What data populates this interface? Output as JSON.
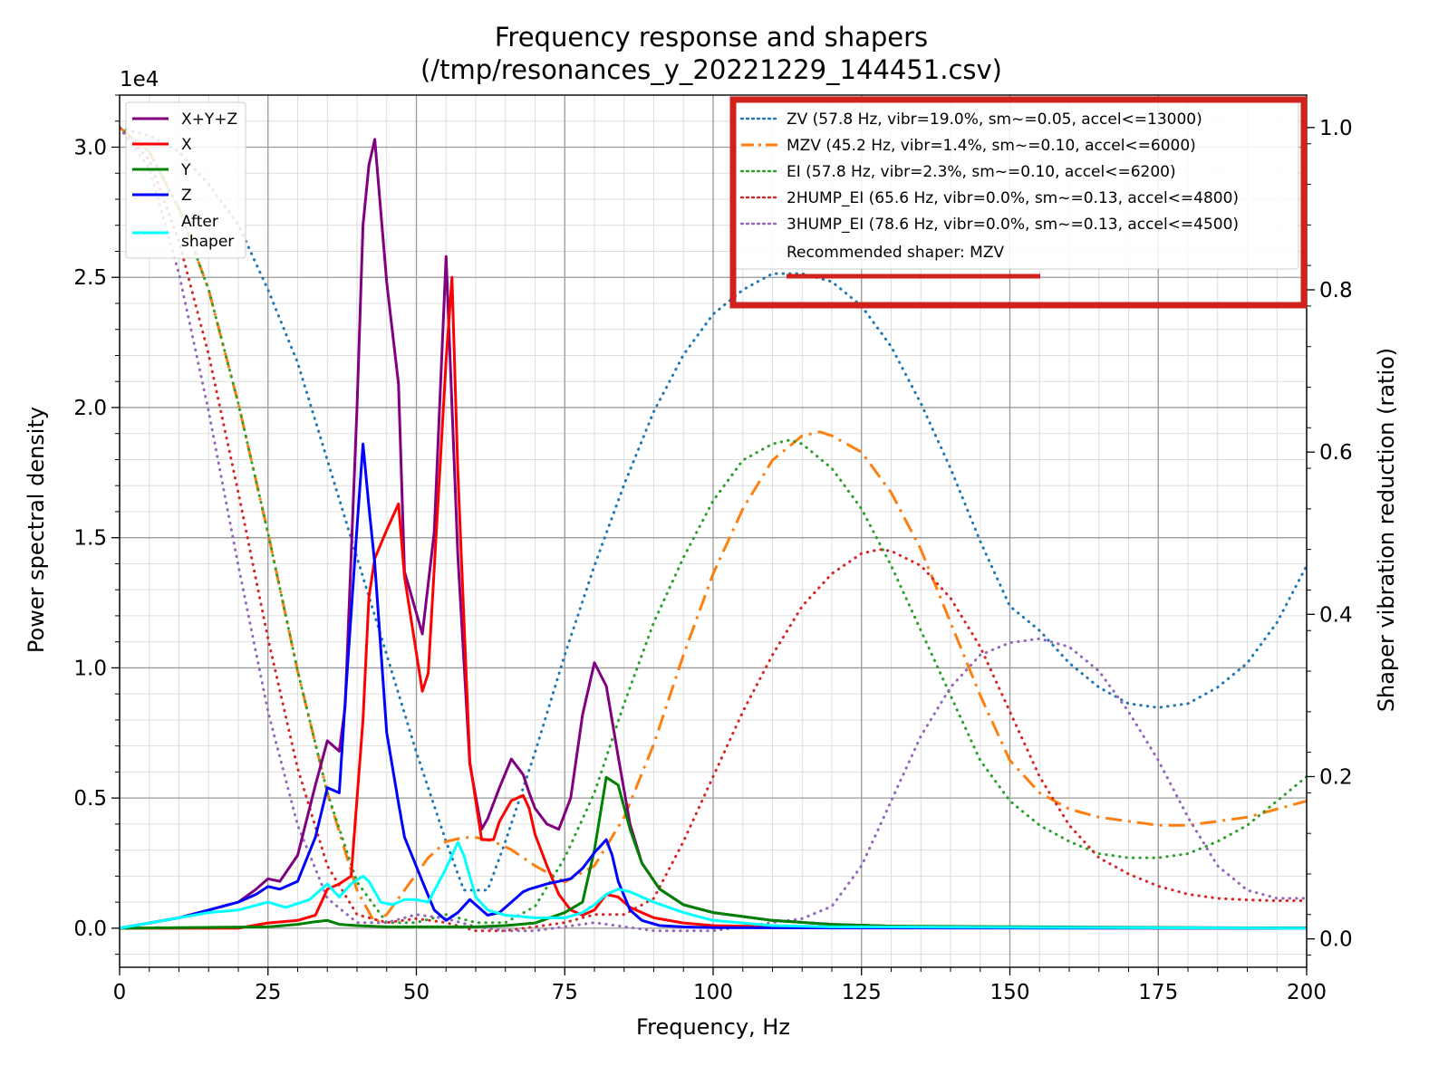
{
  "chart_data": {
    "type": "line",
    "title": "Frequency response and shapers",
    "subtitle": "(/tmp/resonances_y_20221229_144451.csv)",
    "xlabel": "Frequency, Hz",
    "ylabel": "Power spectral density",
    "y2label": "Shaper vibration reduction (ratio)",
    "xlim": [
      0,
      200
    ],
    "ylim": [
      -1500,
      32000
    ],
    "y2lim": [
      -0.035,
      1.04
    ],
    "y_offset_label": "1e4",
    "grid": true,
    "x_ticks": [
      0,
      25,
      50,
      75,
      100,
      125,
      150,
      175,
      200
    ],
    "y_ticks": [
      0,
      5000,
      10000,
      15000,
      20000,
      25000,
      30000
    ],
    "y_tick_labels": [
      "0.0",
      "0.5",
      "1.0",
      "1.5",
      "2.0",
      "2.5",
      "3.0"
    ],
    "y2_ticks": [
      0,
      0.2,
      0.4,
      0.6,
      0.8,
      1.0
    ],
    "y2_tick_labels": [
      "0.0",
      "0.2",
      "0.4",
      "0.6",
      "0.8",
      "1.0"
    ],
    "legend_left_position": "top-left",
    "legend_right_position": "top-right",
    "recommended": "Recommended shaper: MZV",
    "highlight_color": "#d0211c",
    "series": [
      {
        "name": "X+Y+Z",
        "axis": "left",
        "color": "#800080",
        "style": "solid",
        "x": [
          0,
          5,
          10,
          15,
          20,
          23,
          25,
          27,
          30,
          33,
          35,
          37,
          38,
          40,
          41,
          42,
          43,
          45,
          47,
          48,
          51,
          53,
          55,
          57,
          59,
          61,
          62,
          64,
          66,
          68,
          69,
          70,
          72,
          74,
          76,
          78,
          80,
          82,
          84,
          86,
          88,
          91,
          95,
          100,
          110,
          120,
          130,
          140,
          160,
          200
        ],
        "y": [
          0,
          200,
          400,
          700,
          1000,
          1500,
          1900,
          1800,
          2800,
          5500,
          7200,
          6800,
          8500,
          20000,
          27000,
          29300,
          30300,
          24800,
          20900,
          13700,
          11300,
          15200,
          25800,
          14300,
          6300,
          3800,
          4200,
          5400,
          6500,
          5900,
          5200,
          4600,
          4000,
          3800,
          5000,
          8200,
          10200,
          9300,
          6600,
          4000,
          2500,
          1500,
          900,
          600,
          300,
          150,
          80,
          40,
          20,
          10
        ]
      },
      {
        "name": "X",
        "axis": "left",
        "color": "#ff0000",
        "style": "solid",
        "x": [
          0,
          20,
          25,
          30,
          33,
          35,
          37,
          39,
          41,
          42,
          43,
          45,
          47,
          48,
          51,
          52,
          53,
          55,
          56,
          57,
          59,
          61,
          63,
          64,
          66,
          68,
          69,
          70,
          72,
          74,
          76,
          78,
          80,
          82,
          84,
          86,
          90,
          95,
          100,
          110,
          120,
          200
        ],
        "y": [
          0,
          0,
          200,
          300,
          500,
          1500,
          1700,
          2000,
          8000,
          12700,
          14200,
          15300,
          16300,
          13500,
          9100,
          9800,
          13800,
          21800,
          25000,
          17500,
          6400,
          3400,
          3400,
          4100,
          4900,
          5100,
          4600,
          3600,
          2400,
          1300,
          700,
          500,
          700,
          1300,
          1200,
          800,
          400,
          200,
          100,
          50,
          20,
          0
        ]
      },
      {
        "name": "Y",
        "axis": "left",
        "color": "#008000",
        "style": "solid",
        "x": [
          0,
          25,
          30,
          33,
          35,
          37,
          40,
          45,
          50,
          55,
          60,
          65,
          70,
          75,
          78,
          80,
          82,
          84,
          86,
          88,
          91,
          95,
          100,
          110,
          120,
          130,
          200
        ],
        "y": [
          0,
          50,
          150,
          250,
          300,
          150,
          100,
          50,
          50,
          50,
          50,
          100,
          200,
          600,
          1000,
          3000,
          5800,
          5500,
          3800,
          2500,
          1500,
          900,
          600,
          300,
          150,
          80,
          0
        ]
      },
      {
        "name": "Z",
        "axis": "left",
        "color": "#0000ff",
        "style": "solid",
        "x": [
          0,
          5,
          10,
          15,
          20,
          23,
          25,
          27,
          30,
          33,
          35,
          37,
          38,
          40,
          41,
          42,
          43,
          45,
          47,
          48,
          51,
          53,
          55,
          57,
          59,
          61,
          62,
          64,
          66,
          68,
          69,
          72,
          76,
          78,
          80,
          82,
          83,
          84,
          86,
          88,
          91,
          95,
          100,
          120,
          200
        ],
        "y": [
          0,
          200,
          400,
          700,
          1000,
          1300,
          1600,
          1500,
          1800,
          3500,
          5400,
          5200,
          8700,
          15400,
          18600,
          16200,
          14000,
          7500,
          4800,
          3500,
          1800,
          700,
          300,
          600,
          1100,
          700,
          500,
          600,
          1000,
          1400,
          1500,
          1700,
          1900,
          2300,
          2900,
          3400,
          2800,
          1800,
          700,
          300,
          100,
          50,
          20,
          10,
          0
        ]
      },
      {
        "name": "After shaper",
        "axis": "left",
        "color": "#00ffff",
        "style": "solid",
        "x": [
          0,
          5,
          10,
          15,
          20,
          25,
          28,
          32,
          35,
          37,
          39,
          41,
          42,
          44,
          46,
          48,
          50,
          52,
          55,
          57,
          58,
          60,
          62,
          65,
          70,
          75,
          78,
          80,
          82,
          84,
          86,
          90,
          95,
          100,
          110,
          120,
          200
        ],
        "y": [
          0,
          200,
          400,
          600,
          700,
          1000,
          800,
          1100,
          1700,
          1200,
          1700,
          2000,
          1800,
          1000,
          900,
          1100,
          1100,
          1000,
          2300,
          3300,
          2800,
          1200,
          700,
          500,
          400,
          400,
          600,
          900,
          1300,
          1500,
          1400,
          1000,
          600,
          300,
          100,
          50,
          0
        ]
      },
      {
        "name": "ZV (57.8 Hz, vibr=19.0%, sm~=0.05, accel<=13000)",
        "axis": "right",
        "color": "#1f77b4",
        "style": "dotted",
        "x": [
          0,
          5,
          10,
          15,
          20,
          25,
          30,
          35,
          40,
          45,
          50,
          55,
          58,
          62,
          65,
          70,
          75,
          80,
          85,
          90,
          95,
          100,
          105,
          110,
          113,
          115,
          120,
          125,
          130,
          135,
          140,
          145,
          150,
          155,
          160,
          165,
          170,
          175,
          180,
          185,
          190,
          195,
          200
        ],
        "y": [
          1.0,
          0.99,
          0.97,
          0.93,
          0.88,
          0.8,
          0.71,
          0.59,
          0.47,
          0.35,
          0.23,
          0.12,
          0.06,
          0.06,
          0.12,
          0.23,
          0.35,
          0.46,
          0.56,
          0.65,
          0.72,
          0.77,
          0.8,
          0.82,
          0.82,
          0.82,
          0.81,
          0.78,
          0.73,
          0.66,
          0.58,
          0.49,
          0.41,
          0.38,
          0.34,
          0.31,
          0.29,
          0.285,
          0.29,
          0.31,
          0.34,
          0.39,
          0.46
        ]
      },
      {
        "name": "MZV (45.2 Hz, vibr=1.4%, sm~=0.10, accel<=6000)",
        "axis": "right",
        "color": "#ff7f0e",
        "style": "dashdot",
        "x": [
          0,
          5,
          10,
          15,
          20,
          25,
          30,
          35,
          40,
          43,
          45,
          48,
          52,
          55,
          58,
          60,
          63,
          66,
          70,
          75,
          80,
          85,
          90,
          95,
          100,
          105,
          110,
          115,
          118,
          120,
          125,
          130,
          135,
          140,
          145,
          150,
          155,
          160,
          165,
          170,
          175,
          180,
          185,
          190,
          195,
          200
        ],
        "y": [
          1.0,
          0.97,
          0.9,
          0.8,
          0.66,
          0.5,
          0.33,
          0.18,
          0.06,
          0.02,
          0.03,
          0.06,
          0.1,
          0.12,
          0.125,
          0.125,
          0.12,
          0.11,
          0.09,
          0.07,
          0.09,
          0.15,
          0.24,
          0.35,
          0.45,
          0.53,
          0.59,
          0.62,
          0.625,
          0.62,
          0.6,
          0.55,
          0.48,
          0.39,
          0.3,
          0.22,
          0.18,
          0.16,
          0.15,
          0.145,
          0.14,
          0.14,
          0.145,
          0.15,
          0.16,
          0.17
        ]
      },
      {
        "name": "EI (57.8 Hz, vibr=2.3%, sm~=0.10, accel<=6200)",
        "axis": "right",
        "color": "#2ca02c",
        "style": "dotted",
        "x": [
          0,
          5,
          10,
          15,
          20,
          25,
          30,
          35,
          40,
          45,
          50,
          55,
          60,
          65,
          70,
          75,
          80,
          85,
          90,
          95,
          100,
          105,
          110,
          113,
          115,
          120,
          125,
          130,
          135,
          140,
          145,
          150,
          155,
          160,
          165,
          170,
          175,
          180,
          185,
          190,
          195,
          200
        ],
        "y": [
          1.0,
          0.97,
          0.9,
          0.8,
          0.66,
          0.5,
          0.33,
          0.18,
          0.07,
          0.02,
          0.02,
          0.03,
          0.02,
          0.02,
          0.04,
          0.1,
          0.18,
          0.29,
          0.39,
          0.47,
          0.54,
          0.59,
          0.61,
          0.615,
          0.61,
          0.58,
          0.53,
          0.46,
          0.38,
          0.3,
          0.22,
          0.17,
          0.14,
          0.12,
          0.105,
          0.1,
          0.1,
          0.105,
          0.12,
          0.14,
          0.17,
          0.2
        ]
      },
      {
        "name": "2HUMP_EI (65.6 Hz, vibr=0.0%, sm~=0.13, accel<=4800)",
        "axis": "right",
        "color": "#d62728",
        "style": "dotted",
        "x": [
          0,
          5,
          10,
          15,
          20,
          25,
          30,
          35,
          40,
          45,
          50,
          55,
          60,
          65,
          70,
          75,
          80,
          85,
          90,
          95,
          100,
          105,
          110,
          115,
          120,
          125,
          128,
          130,
          135,
          140,
          145,
          150,
          155,
          160,
          165,
          170,
          175,
          180,
          185,
          190,
          195,
          200
        ],
        "y": [
          1.0,
          0.96,
          0.86,
          0.72,
          0.55,
          0.37,
          0.21,
          0.09,
          0.03,
          0.02,
          0.025,
          0.02,
          0.01,
          0.01,
          0.015,
          0.02,
          0.03,
          0.03,
          0.05,
          0.12,
          0.2,
          0.28,
          0.35,
          0.41,
          0.45,
          0.475,
          0.48,
          0.478,
          0.46,
          0.42,
          0.36,
          0.28,
          0.2,
          0.14,
          0.1,
          0.08,
          0.065,
          0.055,
          0.05,
          0.048,
          0.047,
          0.047
        ]
      },
      {
        "name": "3HUMP_EI (78.6 Hz, vibr=0.0%, sm~=0.13, accel<=4500)",
        "axis": "right",
        "color": "#9467bd",
        "style": "dotted",
        "x": [
          0,
          5,
          10,
          15,
          20,
          25,
          30,
          35,
          40,
          45,
          50,
          55,
          60,
          65,
          70,
          75,
          80,
          85,
          90,
          95,
          100,
          105,
          110,
          115,
          120,
          125,
          130,
          135,
          140,
          145,
          150,
          155,
          160,
          165,
          170,
          175,
          180,
          185,
          190,
          195,
          200
        ],
        "y": [
          1.0,
          0.95,
          0.82,
          0.65,
          0.46,
          0.28,
          0.14,
          0.05,
          0.02,
          0.02,
          0.03,
          0.025,
          0.015,
          0.01,
          0.01,
          0.015,
          0.02,
          0.015,
          0.01,
          0.01,
          0.01,
          0.015,
          0.02,
          0.025,
          0.04,
          0.09,
          0.17,
          0.25,
          0.31,
          0.35,
          0.365,
          0.37,
          0.36,
          0.33,
          0.28,
          0.22,
          0.15,
          0.09,
          0.06,
          0.05,
          0.05
        ]
      }
    ]
  }
}
